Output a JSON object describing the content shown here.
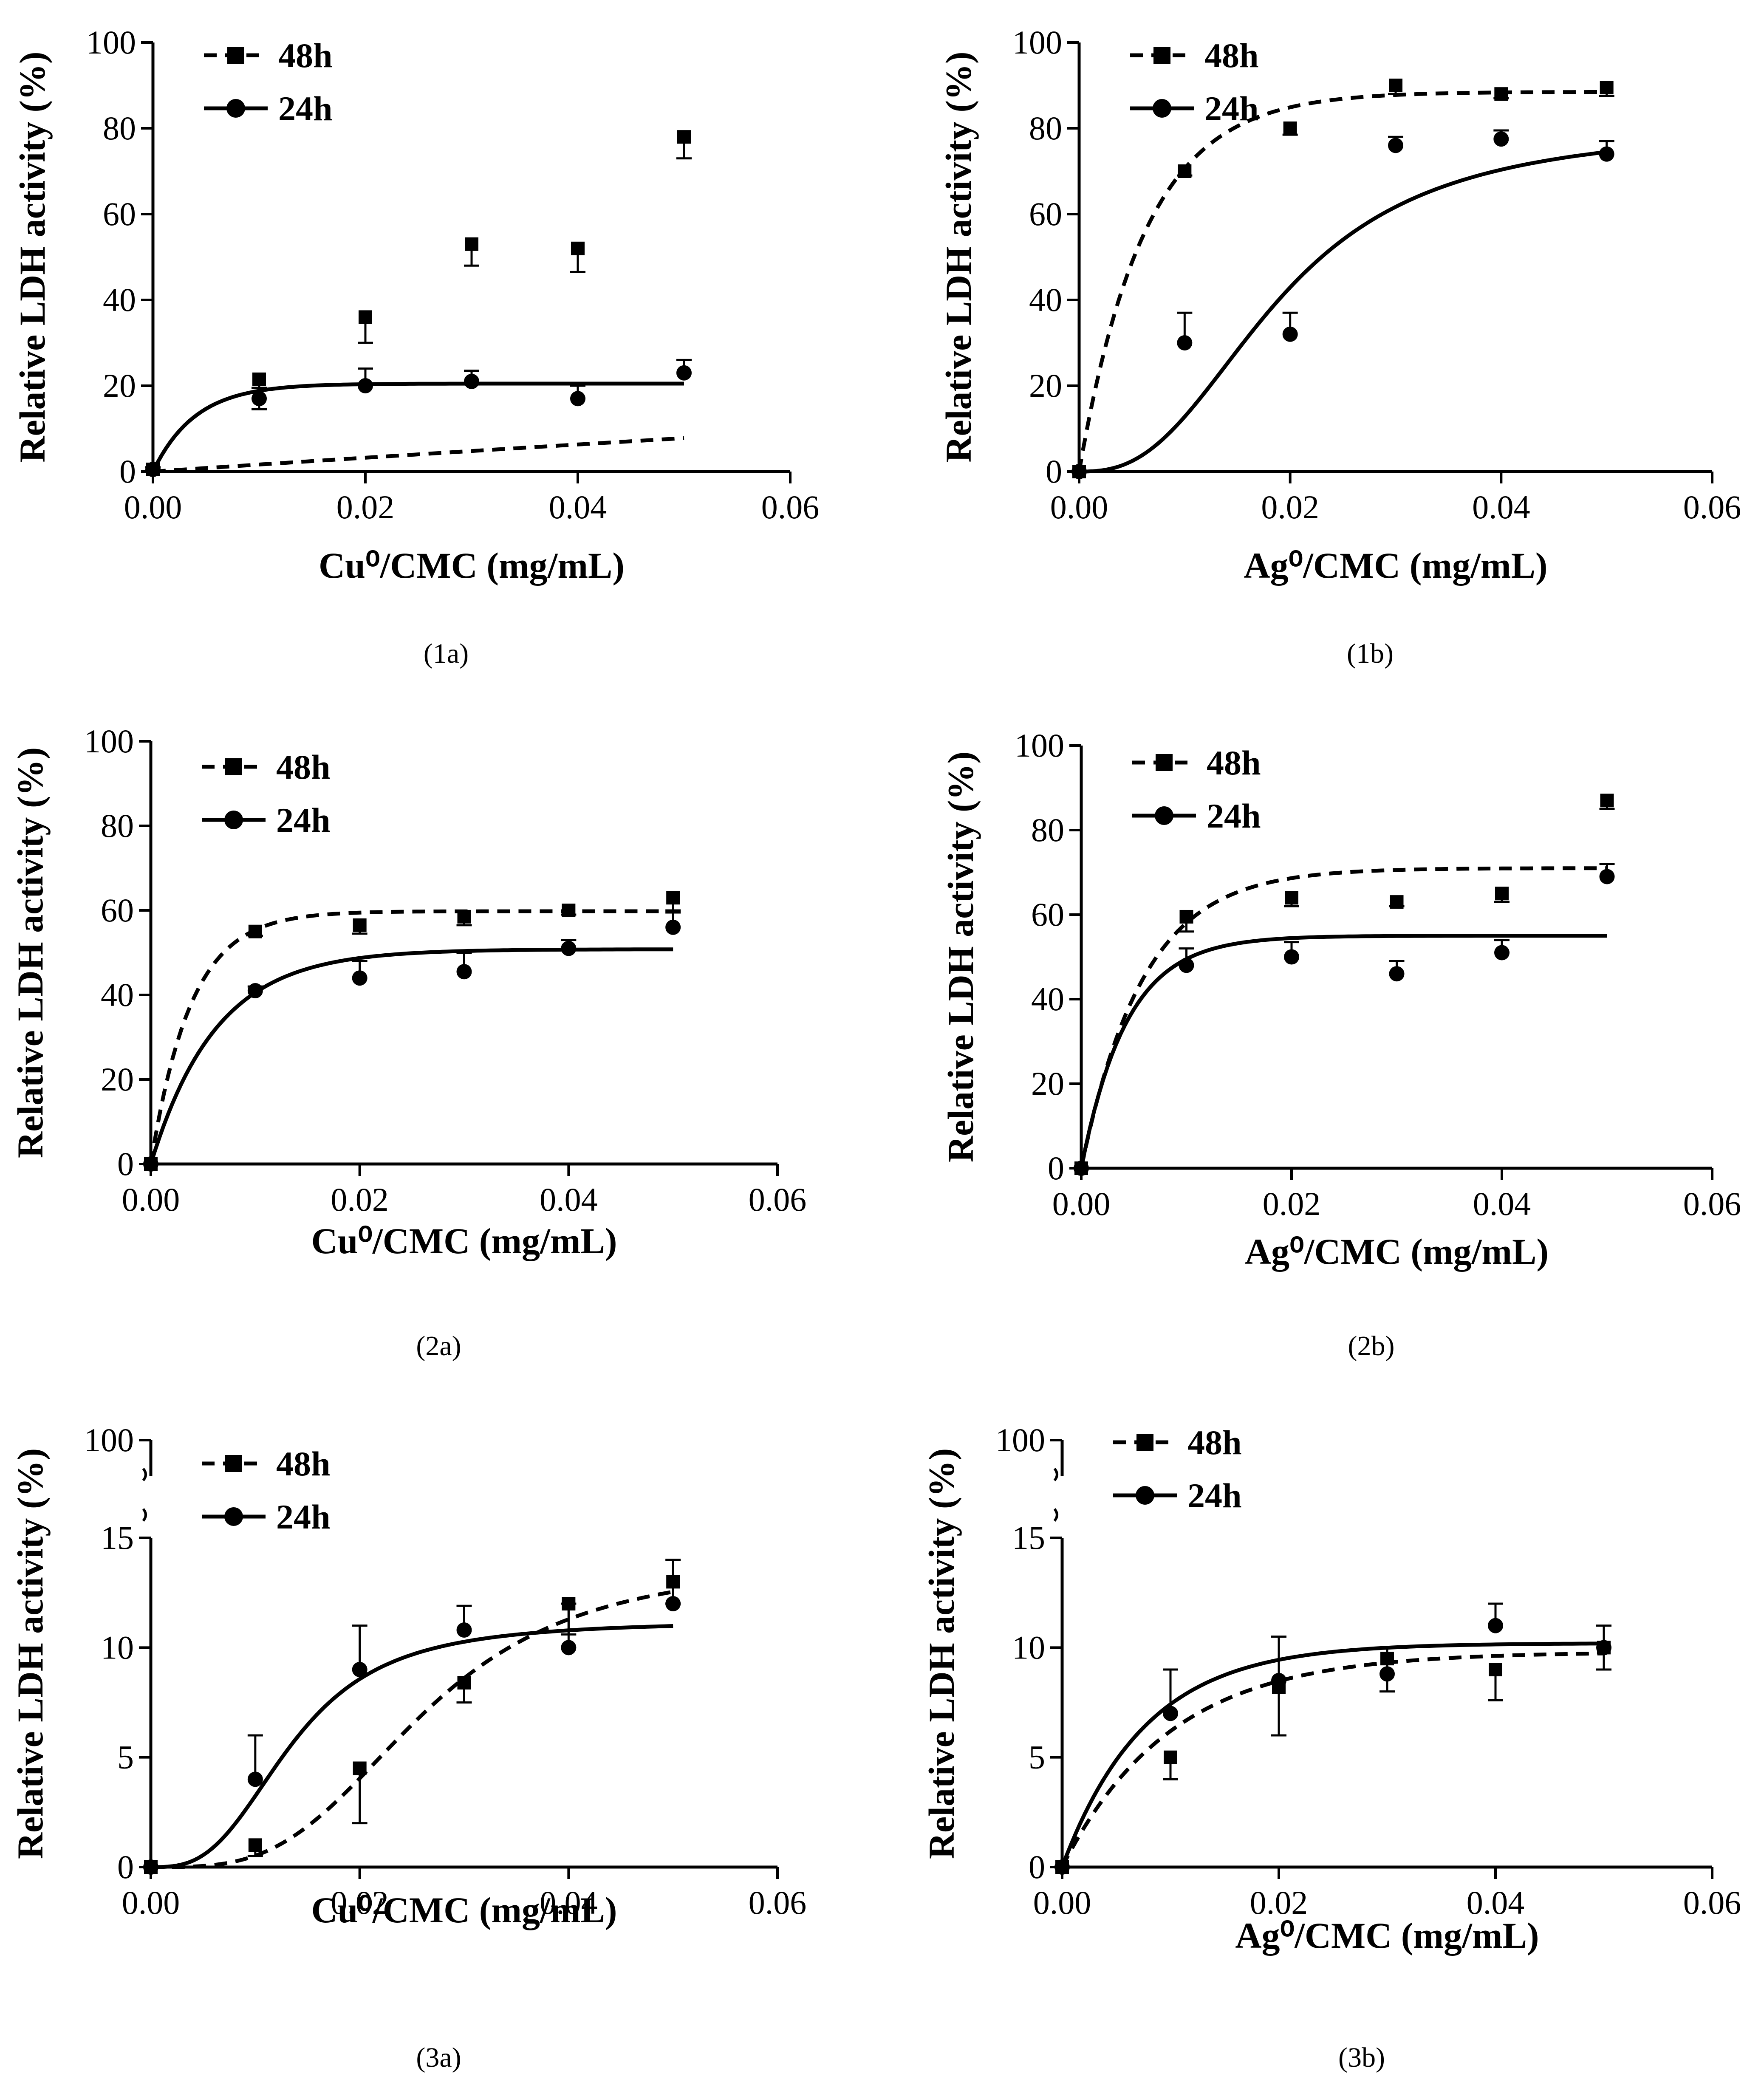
{
  "chart_data": [
    {
      "id": "1a",
      "type": "scatter",
      "panel_label": "(1a)",
      "xlabel": "Cu⁰/CMC (mg/mL)",
      "ylabel": "Relative LDH activity (%)",
      "xlim": [
        0,
        0.06
      ],
      "ylim": [
        0,
        100
      ],
      "y_break": false,
      "xticks": [
        "0.00",
        "0.02",
        "0.04",
        "0.06"
      ],
      "yticks": [
        "0",
        "20",
        "40",
        "60",
        "80",
        "100"
      ],
      "legend_position": "top-left",
      "series": [
        {
          "name": "48h",
          "marker": "square",
          "line": "dashed",
          "x": [
            0,
            0.01,
            0.02,
            0.03,
            0.04,
            0.05
          ],
          "y": [
            0.5,
            21.5,
            36,
            53,
            52,
            78
          ],
          "err": [
            0.5,
            7,
            6,
            5,
            5.5,
            5
          ],
          "fit": {
            "kind": "linearish",
            "a": 165,
            "b": 0.045,
            "c": 0
          }
        },
        {
          "name": "24h",
          "marker": "circle",
          "line": "solid",
          "x": [
            0,
            0.01,
            0.02,
            0.03,
            0.04,
            0.05
          ],
          "y": [
            0.5,
            17,
            20,
            21,
            17,
            23
          ],
          "err": [
            0.5,
            2.5,
            4,
            2.5,
            3,
            3
          ],
          "fit": {
            "kind": "exp",
            "top": 20.5,
            "k": 250
          }
        }
      ]
    },
    {
      "id": "1b",
      "type": "scatter",
      "panel_label": "(1b)",
      "xlabel": "Ag⁰/CMC (mg/mL)",
      "ylabel": "Relative LDH activity (%)",
      "xlim": [
        0,
        0.06
      ],
      "ylim": [
        0,
        100
      ],
      "y_break": false,
      "xticks": [
        "0.00",
        "0.02",
        "0.04",
        "0.06"
      ],
      "yticks": [
        "0",
        "20",
        "40",
        "60",
        "80",
        "100"
      ],
      "legend_position": "top-left",
      "series": [
        {
          "name": "48h",
          "marker": "square",
          "line": "dashed",
          "x": [
            0,
            0.01,
            0.02,
            0.03,
            0.04,
            0.05
          ],
          "y": [
            0,
            70,
            80,
            90,
            88,
            89.5
          ],
          "err": [
            0,
            1,
            1.5,
            2,
            1,
            2
          ],
          "fit": {
            "kind": "exp",
            "top": 88.5,
            "k": 160
          }
        },
        {
          "name": "24h",
          "marker": "circle",
          "line": "solid",
          "x": [
            0,
            0.01,
            0.02,
            0.03,
            0.04,
            0.05
          ],
          "y": [
            0,
            30,
            32,
            76,
            77.5,
            74
          ],
          "err": [
            0,
            7,
            5,
            2,
            2,
            3
          ],
          "fit": {
            "kind": "hill",
            "top": 80.5,
            "bottom": 0,
            "ec50": 0.019,
            "n": 2.6
          }
        }
      ]
    },
    {
      "id": "2a",
      "type": "scatter",
      "panel_label": "(2a)",
      "xlabel": "Cu⁰/CMC (mg/mL)",
      "ylabel": "Relative LDH activity (%)",
      "xlim": [
        0,
        0.06
      ],
      "ylim": [
        0,
        100
      ],
      "y_break": false,
      "xticks": [
        "0.00",
        "0.02",
        "0.04",
        "0.06"
      ],
      "yticks": [
        "0",
        "20",
        "40",
        "60",
        "80",
        "100"
      ],
      "legend_position": "top-left",
      "series": [
        {
          "name": "48h",
          "marker": "square",
          "line": "dashed",
          "x": [
            0,
            0.01,
            0.02,
            0.03,
            0.04,
            0.05
          ],
          "y": [
            0,
            55,
            56.5,
            58.5,
            60,
            63
          ],
          "err": [
            0,
            1,
            2,
            2,
            1,
            3
          ],
          "fit": {
            "kind": "exp",
            "top": 59.8,
            "k": 260
          }
        },
        {
          "name": "24h",
          "marker": "circle",
          "line": "solid",
          "x": [
            0,
            0.01,
            0.02,
            0.03,
            0.04,
            0.05
          ],
          "y": [
            0,
            41,
            44,
            45.5,
            51,
            56
          ],
          "err": [
            0,
            1,
            4,
            4.5,
            2,
            3.5
          ],
          "fit": {
            "kind": "exp",
            "top": 50.8,
            "k": 160
          }
        }
      ]
    },
    {
      "id": "2b",
      "type": "scatter",
      "panel_label": "(2b)",
      "xlabel": "Ag⁰/CMC (mg/mL)",
      "ylabel": "Relative LDH activity (%)",
      "xlim": [
        0,
        0.06
      ],
      "ylim": [
        0,
        100
      ],
      "y_break": false,
      "xticks": [
        "0.00",
        "0.02",
        "0.04",
        "0.06"
      ],
      "yticks": [
        "0",
        "20",
        "40",
        "60",
        "80",
        "100"
      ],
      "legend_position": "top-left",
      "series": [
        {
          "name": "48h",
          "marker": "square",
          "line": "dashed",
          "x": [
            0,
            0.01,
            0.02,
            0.03,
            0.04,
            0.05
          ],
          "y": [
            0,
            59.5,
            64,
            63,
            65,
            87
          ],
          "err": [
            0,
            3.5,
            2,
            1,
            2,
            2
          ],
          "fit": {
            "kind": "exp",
            "top": 71,
            "k": 170
          }
        },
        {
          "name": "24h",
          "marker": "circle",
          "line": "solid",
          "x": [
            0,
            0.01,
            0.02,
            0.03,
            0.04,
            0.05
          ],
          "y": [
            0,
            48,
            50,
            46,
            51,
            69
          ],
          "err": [
            0,
            4,
            3.5,
            3,
            3,
            3
          ],
          "fit": {
            "kind": "exp",
            "top": 55,
            "k": 230
          }
        }
      ]
    },
    {
      "id": "3a",
      "type": "scatter",
      "panel_label": "(3a)",
      "xlabel": "Cu⁰/CMC (mg/mL)",
      "ylabel": "Relative LDH activity (%)",
      "xlim": [
        0,
        0.06
      ],
      "ylim": [
        0,
        15
      ],
      "y_break": true,
      "y_break_top": 100,
      "xticks": [
        "0.00",
        "0.02",
        "0.04",
        "0.06"
      ],
      "yticks": [
        "0",
        "5",
        "10",
        "15"
      ],
      "legend_position": "top-left",
      "series": [
        {
          "name": "48h",
          "marker": "square",
          "line": "dashed",
          "x": [
            0,
            0.01,
            0.02,
            0.03,
            0.04,
            0.05
          ],
          "y": [
            0,
            1,
            4.5,
            8.4,
            12,
            13
          ],
          "err": [
            0,
            0.5,
            2.5,
            0.9,
            1.4,
            1
          ],
          "fit": {
            "kind": "hill",
            "top": 13.9,
            "bottom": 0,
            "ec50": 0.026,
            "n": 3.4
          }
        },
        {
          "name": "24h",
          "marker": "circle",
          "line": "solid",
          "x": [
            0,
            0.01,
            0.02,
            0.03,
            0.04,
            0.05
          ],
          "y": [
            0,
            4,
            9,
            10.8,
            10,
            12
          ],
          "err": [
            0,
            2,
            2,
            1.1,
            2,
            2
          ],
          "fit": {
            "kind": "hill",
            "top": 11.2,
            "bottom": 0,
            "ec50": 0.0135,
            "n": 3.0
          }
        }
      ]
    },
    {
      "id": "3b",
      "type": "scatter",
      "panel_label": "(3b)",
      "xlabel": "Ag⁰/CMC (mg/mL)",
      "ylabel": "Relative LDH activity (%)",
      "xlim": [
        0,
        0.06
      ],
      "ylim": [
        0,
        15
      ],
      "y_break": true,
      "y_break_top": 100,
      "xticks": [
        "0.00",
        "0.02",
        "0.04",
        "0.06"
      ],
      "yticks": [
        "0",
        "5",
        "10",
        "15"
      ],
      "legend_position": "top-left",
      "series": [
        {
          "name": "48h",
          "marker": "square",
          "line": "dashed",
          "x": [
            0,
            0.01,
            0.02,
            0.03,
            0.04,
            0.05
          ],
          "y": [
            0,
            5,
            8.2,
            9.5,
            9,
            10
          ],
          "err": [
            0,
            1,
            2.2,
            1.5,
            1.4,
            1
          ],
          "fit": {
            "kind": "exp",
            "top": 9.8,
            "k": 100
          }
        },
        {
          "name": "24h",
          "marker": "circle",
          "line": "solid",
          "x": [
            0,
            0.01,
            0.02,
            0.03,
            0.04,
            0.05
          ],
          "y": [
            0,
            7,
            8.5,
            8.8,
            11,
            10
          ],
          "err": [
            0,
            2,
            2,
            1.2,
            1,
            1
          ],
          "fit": {
            "kind": "exp",
            "top": 10.2,
            "k": 130
          }
        }
      ]
    }
  ]
}
